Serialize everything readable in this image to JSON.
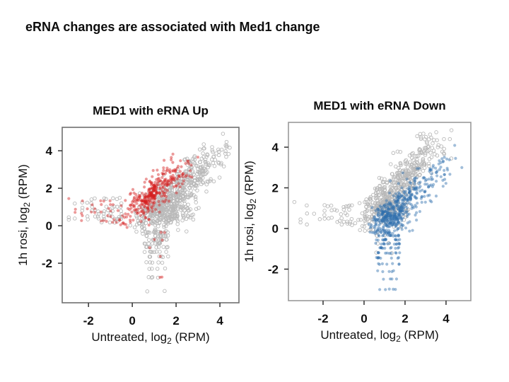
{
  "title": "eRNA changes are associated with Med1 change",
  "chart_data": [
    {
      "type": "scatter",
      "title": "MED1 with eRNA Up",
      "xlabel": {
        "main": "Untreated, log",
        "sub": "2",
        "unit": " (RPM)"
      },
      "ylabel": {
        "main": "1h rosi, log",
        "sub": "2",
        "unit": " (RPM)"
      },
      "frame_color": "#707070",
      "tick_color": "#333333",
      "text_color": "#111111",
      "axis": {
        "xticks": [
          -2,
          0,
          2,
          4
        ],
        "yticks": [
          4,
          2,
          0,
          -2
        ],
        "xlim": [
          -3.2,
          4.87
        ],
        "ylim": [
          -4.11,
          5.25
        ],
        "grid": false
      },
      "series": [
        {
          "id": "background-enhancers",
          "marker": "open-circle",
          "color": "#b9b9b9",
          "radius": 2.3,
          "clusters": [
            {
              "type": "gauss",
              "n": 380,
              "mx": 2.0,
              "sx": 1.05,
              "slope": 0.95,
              "my": -0.15,
              "sy": 0.55,
              "xr": [
                -0.7,
                4.75
              ],
              "yr": [
                -0.45,
                5.0
              ]
            },
            {
              "type": "gauss",
              "n": 240,
              "mx": 1.5,
              "sx": 0.6,
              "slope": 0,
              "my": 0.8,
              "sy": 0.5,
              "xr": [
                0.1,
                3.3
              ],
              "yr": [
                -0.35,
                2.3
              ]
            },
            {
              "type": "gauss",
              "n": 45,
              "mx": 3.1,
              "sx": 0.75,
              "slope": 0.9,
              "my": 0.35,
              "sy": 0.65,
              "xr": [
                1.6,
                4.75
              ],
              "yr": [
                1.2,
                5.0
              ]
            },
            {
              "type": "cols",
              "xs": [
                -2.6,
                -2.3,
                -2.05,
                -1.85,
                -1.7,
                -1.55,
                -1.42,
                -1.3,
                -1.2,
                -1.1,
                -1.0,
                -0.9,
                -0.8,
                -0.7,
                -0.6,
                -0.5
              ],
              "ys": [
                0.2,
                0.35,
                0.5,
                0.65,
                0.8,
                1.0,
                1.2,
                1.45
              ],
              "p": 0.42
            },
            {
              "type": "rows",
              "xr": [
                0.55,
                1.65
              ],
              "rows": [
                {
                  "y": -0.35,
                  "n": 13
                },
                {
                  "y": -0.55,
                  "n": 12
                },
                {
                  "y": -0.75,
                  "n": 11
                },
                {
                  "y": -0.95,
                  "n": 10
                },
                {
                  "y": -1.15,
                  "n": 9
                },
                {
                  "y": -1.4,
                  "n": 8
                },
                {
                  "y": -1.65,
                  "n": 7
                },
                {
                  "y": -1.95,
                  "n": 5
                },
                {
                  "y": -2.3,
                  "n": 4
                },
                {
                  "y": -2.75,
                  "n": 4
                },
                {
                  "y": -3.5,
                  "n": 2
                }
              ]
            },
            {
              "type": "pts",
              "pts": [
                [
                  -2.9,
                  0.45
                ],
                [
                  -2.9,
                  0.32
                ],
                [
                  4.3,
                  4.2
                ]
              ]
            }
          ]
        },
        {
          "id": "erna-up-enhancers",
          "marker": "filled-circle",
          "color": "#d41f1f",
          "opacity": 0.45,
          "radius": 2.1,
          "clusters": [
            {
              "type": "gauss",
              "n": 280,
              "mx": 1.0,
              "sx": 0.8,
              "slope": 0.9,
              "my": 0.85,
              "sy": 0.5,
              "xr": [
                -1.35,
                3.3
              ],
              "yr": [
                -0.2,
                3.9
              ]
            },
            {
              "type": "gauss",
              "n": 60,
              "mx": 0.9,
              "sx": 0.35,
              "slope": 1.0,
              "my": 0.75,
              "sy": 0.25
            },
            {
              "type": "cols",
              "xs": [
                -2.6,
                -2.3,
                -2.05,
                -1.85,
                -1.7,
                -1.55,
                -1.42,
                -1.3,
                -1.2,
                -1.1,
                -1.0,
                -0.9
              ],
              "ys": [
                0.3,
                0.5,
                0.7,
                0.9,
                1.1,
                1.35
              ],
              "p": 0.26
            },
            {
              "type": "rows",
              "xr": [
                0.6,
                1.5
              ],
              "rows": [
                {
                  "y": -0.35,
                  "n": 2
                },
                {
                  "y": -0.75,
                  "n": 2
                },
                {
                  "y": -1.15,
                  "n": 1
                },
                {
                  "y": -1.65,
                  "n": 1
                },
                {
                  "y": -2.75,
                  "n": 2
                }
              ]
            },
            {
              "type": "pts",
              "pts": [
                [
                  -2.9,
                  1.45
                ]
              ]
            }
          ]
        }
      ]
    },
    {
      "type": "scatter",
      "title": "MED1 with eRNA Down",
      "xlabel": {
        "main": "Untreated, log",
        "sub": "2",
        "unit": " (RPM)"
      },
      "ylabel": {
        "main": "1h rosi, log",
        "sub": "2",
        "unit": " (RPM)"
      },
      "frame_color": "#9a9a9a",
      "tick_color": "#333333",
      "text_color": "#111111",
      "axis": {
        "xticks": [
          -2,
          0,
          2,
          4
        ],
        "yticks": [
          4,
          2,
          0,
          -2
        ],
        "xlim": [
          -3.69,
          5.21
        ],
        "ylim": [
          -3.55,
          5.22
        ],
        "grid": false
      },
      "series": [
        {
          "id": "background-enhancers",
          "marker": "open-circle",
          "color": "#b9b9b9",
          "radius": 2.3,
          "clusters": [
            {
              "type": "gauss",
              "n": 380,
              "mx": 1.7,
              "sx": 1.05,
              "slope": 1.0,
              "my": 0.55,
              "sy": 0.55,
              "xr": [
                -0.5,
                4.45
              ],
              "yr": [
                -0.2,
                4.9
              ]
            },
            {
              "type": "gauss",
              "n": 150,
              "mx": 1.1,
              "sx": 0.5,
              "slope": 0,
              "my": 1.1,
              "sy": 0.45,
              "xr": [
                -0.3,
                2.7
              ],
              "yr": [
                0.05,
                2.5
              ]
            },
            {
              "type": "cols",
              "xs": [
                -2.8,
                -2.45,
                -2.15,
                -1.95,
                -1.75,
                -1.6,
                -1.45,
                -1.32,
                -1.2,
                -1.1,
                -1.0,
                -0.9,
                -0.8,
                -0.7,
                -0.6
              ],
              "ys": [
                0.2,
                0.35,
                0.5,
                0.7,
                0.9,
                1.1
              ],
              "p": 0.38
            },
            {
              "type": "rows",
              "xr": [
                0.5,
                1.35
              ],
              "rows": [
                {
                  "y": -0.35,
                  "n": 3
                },
                {
                  "y": -0.75,
                  "n": 2
                },
                {
                  "y": -1.2,
                  "n": 2
                },
                {
                  "y": -3.7,
                  "n": 1
                }
              ]
            },
            {
              "type": "pts",
              "pts": [
                [
                  -3.4,
                  1.3
                ],
                [
                  -3.1,
                  0.45
                ],
                [
                  -3.1,
                  0.3
                ],
                [
                  3.9,
                  4.4
                ]
              ]
            }
          ]
        },
        {
          "id": "erna-down-enhancers",
          "marker": "filled-circle",
          "color": "#2f6fad",
          "opacity": 0.45,
          "radius": 2.1,
          "clusters": [
            {
              "type": "gauss",
              "n": 330,
              "mx": 1.7,
              "sx": 0.95,
              "slope": 1.0,
              "my": -0.72,
              "sy": 0.5,
              "xr": [
                0.15,
                4.7
              ],
              "yr": [
                -0.3,
                3.9
              ]
            },
            {
              "type": "gauss",
              "n": 130,
              "mx": 1.3,
              "sx": 0.45,
              "slope": 0,
              "my": 0.55,
              "sy": 0.38,
              "xr": [
                0.3,
                2.7
              ],
              "yr": [
                -0.25,
                1.9
              ]
            },
            {
              "type": "rows",
              "xr": [
                0.55,
                1.75
              ],
              "rows": [
                {
                  "y": -0.35,
                  "n": 15
                },
                {
                  "y": -0.55,
                  "n": 14
                },
                {
                  "y": -0.75,
                  "n": 13
                },
                {
                  "y": -0.95,
                  "n": 12
                },
                {
                  "y": -1.2,
                  "n": 10
                },
                {
                  "y": -1.45,
                  "n": 9
                },
                {
                  "y": -1.75,
                  "n": 7
                },
                {
                  "y": -2.1,
                  "n": 5
                },
                {
                  "y": -2.5,
                  "n": 4
                },
                {
                  "y": -3.0,
                  "n": 5
                },
                {
                  "y": -3.7,
                  "n": 2
                }
              ]
            },
            {
              "type": "gauss",
              "n": 22,
              "mx": 3.6,
              "sx": 0.55,
              "slope": 1.0,
              "my": -1.0,
              "sy": 0.6,
              "xr": [
                2.6,
                4.8
              ],
              "yr": [
                0.6,
                4.2
              ]
            }
          ]
        }
      ]
    }
  ]
}
